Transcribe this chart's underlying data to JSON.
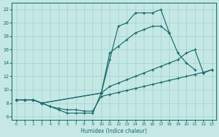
{
  "xlabel": "Humidex (Indice chaleur)",
  "bg_color": "#c5e8e5",
  "line_color": "#1a6b6b",
  "grid_color": "#9fcfcc",
  "xlim": [
    -0.5,
    23.5
  ],
  "ylim": [
    5.5,
    23
  ],
  "xticks": [
    0,
    1,
    2,
    3,
    4,
    5,
    6,
    7,
    8,
    9,
    10,
    11,
    12,
    13,
    14,
    15,
    16,
    17,
    18,
    19,
    20,
    21,
    22,
    23
  ],
  "yticks": [
    6,
    8,
    10,
    12,
    14,
    16,
    18,
    20,
    22
  ],
  "line1_x": [
    0,
    1,
    2,
    3,
    4,
    5,
    6,
    7,
    8,
    9,
    10,
    11,
    12,
    13,
    14,
    15,
    16,
    17,
    18
  ],
  "line1_y": [
    8.5,
    8.5,
    8.5,
    8.0,
    7.5,
    7.0,
    6.5,
    6.5,
    6.5,
    6.5,
    9.5,
    14.5,
    19.5,
    20.0,
    21.5,
    21.5,
    21.5,
    22.0,
    18.5
  ],
  "line2_x": [
    0,
    1,
    2,
    3,
    10,
    11,
    12,
    13,
    14,
    15,
    16,
    17,
    18,
    19,
    20,
    21
  ],
  "line2_y": [
    8.5,
    8.5,
    8.5,
    8.0,
    9.5,
    15.5,
    16.5,
    17.5,
    18.5,
    19.0,
    19.5,
    19.5,
    18.5,
    15.5,
    14.0,
    13.0
  ],
  "line3_x": [
    0,
    1,
    2,
    3,
    10,
    11,
    12,
    13,
    14,
    15,
    16,
    17,
    18,
    19,
    20,
    21,
    22,
    23
  ],
  "line3_y": [
    8.5,
    8.5,
    8.5,
    8.0,
    9.5,
    10.5,
    11.0,
    11.5,
    12.0,
    12.5,
    13.0,
    13.5,
    14.0,
    14.5,
    15.5,
    16.0,
    12.5,
    13.0
  ],
  "line4_x": [
    0,
    1,
    2,
    3,
    4,
    5,
    6,
    7,
    8,
    9,
    10,
    11,
    12,
    13,
    14,
    15,
    16,
    17,
    18,
    19,
    20,
    21,
    22,
    23
  ],
  "line4_y": [
    8.5,
    8.5,
    8.5,
    8.0,
    7.5,
    7.2,
    7.0,
    7.0,
    6.8,
    6.8,
    9.0,
    9.3,
    9.6,
    9.9,
    10.2,
    10.5,
    10.8,
    11.1,
    11.4,
    11.7,
    12.0,
    12.3,
    12.6,
    13.0
  ]
}
